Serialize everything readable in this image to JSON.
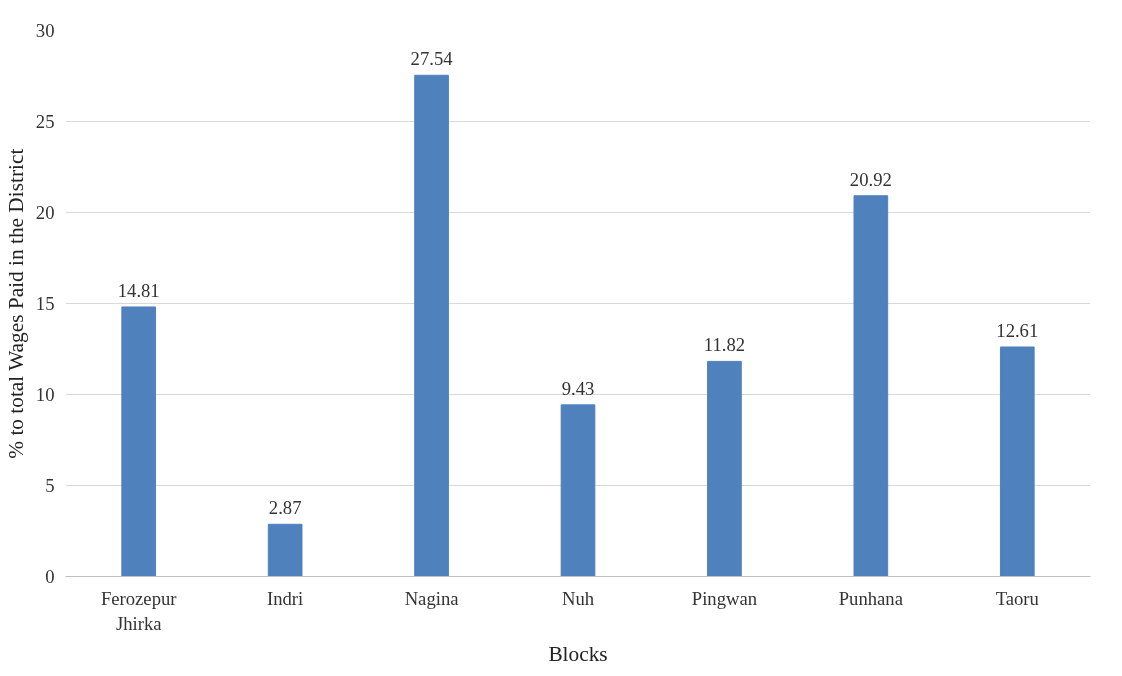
{
  "chart_data": {
    "type": "bar",
    "xlabel": "Blocks",
    "ylabel": "% to total Wages Paid in the District",
    "categories": [
      "Ferozepur\nJhirka",
      "Indri",
      "Nagina",
      "Nuh",
      "Pingwan",
      "Punhana",
      "Taoru"
    ],
    "values": [
      14.81,
      2.87,
      27.54,
      9.43,
      11.82,
      20.92,
      12.61
    ],
    "color": "#4f81bd",
    "ylim": [
      0,
      30
    ],
    "yticks": [
      0,
      5,
      10,
      15,
      20,
      25,
      30
    ],
    "grid": "y",
    "data_labels": true
  }
}
